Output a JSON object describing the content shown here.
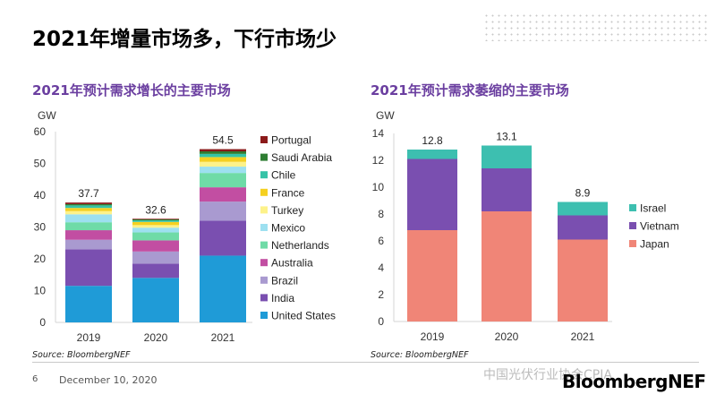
{
  "slide": {
    "title": "2021年增量市场多，下行市场少",
    "page_number": "6",
    "date": "December 10, 2020",
    "watermark": "中国光伏行业协会CPIA",
    "brand": "BloombergNEF"
  },
  "chart_data": [
    {
      "type": "bar",
      "stacked": true,
      "title": "2021年预计需求增长的主要市场",
      "ylabel": "GW",
      "ylim": [
        0,
        60
      ],
      "yticks": [
        0,
        10,
        20,
        30,
        40,
        50,
        60
      ],
      "categories": [
        "2019",
        "2020",
        "2021"
      ],
      "totals": [
        "37.7",
        "32.6",
        "54.5"
      ],
      "series": [
        {
          "name": "United States",
          "color": "#1f9bd7",
          "values": [
            11.5,
            14.0,
            21.0
          ]
        },
        {
          "name": "India",
          "color": "#7a4fb0",
          "values": [
            11.5,
            4.5,
            11.0
          ]
        },
        {
          "name": "Brazil",
          "color": "#a99ad0",
          "values": [
            3.0,
            3.8,
            6.0
          ]
        },
        {
          "name": "Australia",
          "color": "#c24ea2",
          "values": [
            3.0,
            3.5,
            4.5
          ]
        },
        {
          "name": "Netherlands",
          "color": "#6fdba7",
          "values": [
            2.5,
            2.5,
            4.5
          ]
        },
        {
          "name": "Mexico",
          "color": "#9de0f0",
          "values": [
            2.5,
            1.5,
            2.0
          ]
        },
        {
          "name": "Turkey",
          "color": "#fdf28a",
          "values": [
            1.0,
            0.8,
            1.5
          ]
        },
        {
          "name": "France",
          "color": "#f5d020",
          "values": [
            1.0,
            1.0,
            1.5
          ]
        },
        {
          "name": "Chile",
          "color": "#36c3a7",
          "values": [
            0.8,
            0.5,
            1.0
          ]
        },
        {
          "name": "Saudi Arabia",
          "color": "#2e7d32",
          "values": [
            0.4,
            0.3,
            0.8
          ]
        },
        {
          "name": "Portugal",
          "color": "#8b1a1a",
          "values": [
            0.5,
            0.2,
            0.7
          ]
        }
      ],
      "source": "Source: BloombergNEF"
    },
    {
      "type": "bar",
      "stacked": true,
      "title": "2021年预计需求萎缩的主要市场",
      "ylabel": "GW",
      "ylim": [
        0,
        14
      ],
      "yticks": [
        0,
        2,
        4,
        6,
        8,
        10,
        12,
        14
      ],
      "categories": [
        "2019",
        "2020",
        "2021"
      ],
      "totals": [
        "12.8",
        "13.1",
        "8.9"
      ],
      "series": [
        {
          "name": "Japan",
          "color": "#f08577",
          "values": [
            6.8,
            8.2,
            6.1
          ]
        },
        {
          "name": "Vietnam",
          "color": "#7a4fb0",
          "values": [
            5.3,
            3.2,
            1.8
          ]
        },
        {
          "name": "Israel",
          "color": "#3dbfb0",
          "values": [
            0.7,
            1.7,
            1.0
          ]
        }
      ],
      "source": "Source: BloombergNEF"
    }
  ]
}
